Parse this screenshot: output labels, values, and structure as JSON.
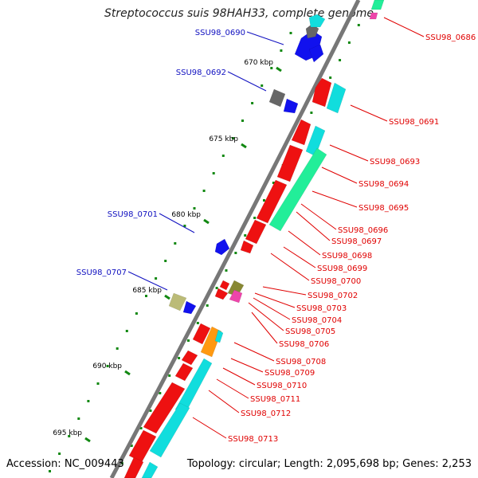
{
  "title": "Streptococcus suis 98HAH33, complete genome",
  "accession": "Accession: NC_009443",
  "topology": "Topology: circular; Length: 2,095,698 bp; Genes: 2,253",
  "ticks": [
    "670 kbp",
    "675 kbp",
    "680 kbp",
    "685 kbp",
    "690 kbp",
    "695 kbp"
  ],
  "genes_reverse": [
    "SSU98_0690",
    "SSU98_0692",
    "SSU98_0701",
    "SSU98_0707"
  ],
  "genes_forward": [
    "SSU98_0686",
    "SSU98_0691",
    "SSU98_0693",
    "SSU98_0694",
    "SSU98_0695",
    "SSU98_0696",
    "SSU98_0697",
    "SSU98_0698",
    "SSU98_0699",
    "SSU98_0700",
    "SSU98_0702",
    "SSU98_0703",
    "SSU98_0704",
    "SSU98_0705",
    "SSU98_0706",
    "SSU98_0708",
    "SSU98_0709",
    "SSU98_0710",
    "SSU98_0711",
    "SSU98_0712",
    "SSU98_0713"
  ],
  "colors": {
    "backbone": "#777777",
    "forward_label": "#e00000",
    "reverse_label": "#1010c0",
    "gene_red": "#ee1111",
    "gene_blue": "#1111ee",
    "gene_cyan": "#11dddd",
    "gene_green": "#22ee99",
    "gene_gray": "#666666",
    "gene_olive": "#888833",
    "gene_khaki": "#bbbb77",
    "gene_orange": "#ff9911",
    "gene_pink": "#ee44aa",
    "gc_dots": "#118811"
  }
}
